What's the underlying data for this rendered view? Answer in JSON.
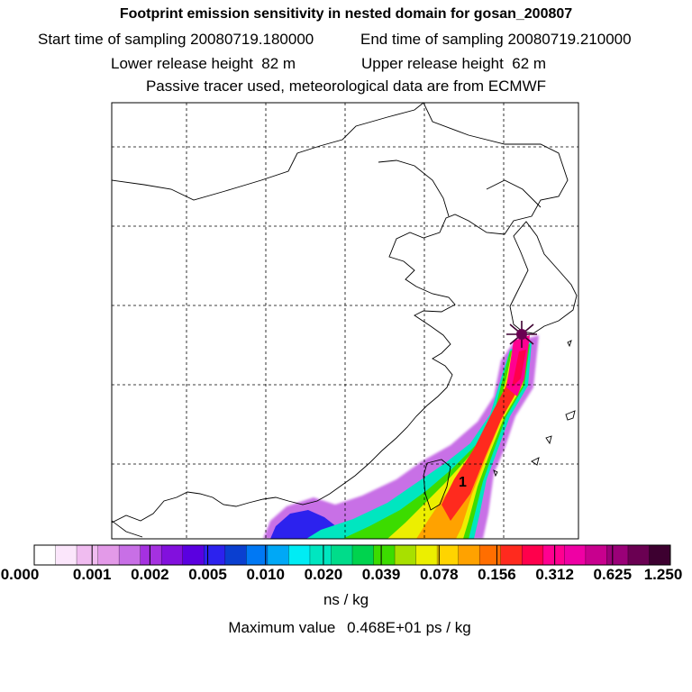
{
  "title": {
    "main": "Footprint emission sensitivity in nested domain for gosan_200807",
    "start_label": "Start time of sampling",
    "start_value": "20080719.180000",
    "end_label": "End time of sampling",
    "end_value": "20080719.210000",
    "lower_label": "Lower release height",
    "lower_value": "82 m",
    "upper_label": "Upper release height",
    "upper_value": "62 m",
    "note": "Passive tracer used, meteorological data are from ECMWF"
  },
  "map": {
    "receptor_marker": "star-marker",
    "max_label": "1"
  },
  "legend": {
    "colors": [
      "#ffffff",
      "#fbe6fb",
      "#f0bcf0",
      "#e39ae8",
      "#c86fe6",
      "#a531e0",
      "#8210dd",
      "#5a00e0",
      "#2c22ee",
      "#0a3fd0",
      "#0078f4",
      "#00a8f6",
      "#00ecf4",
      "#00e6c0",
      "#00dc8a",
      "#00d34e",
      "#3cdc00",
      "#a8e000",
      "#ecef00",
      "#ffd400",
      "#ffa200",
      "#ff6e00",
      "#ff2a1e",
      "#ff004c",
      "#ff0090",
      "#ef00a4",
      "#c8008e",
      "#9a0078",
      "#6a0052",
      "#3d0030"
    ],
    "ticks": [
      "0.000",
      "0.001",
      "0.002",
      "0.005",
      "0.010",
      "0.020",
      "0.039",
      "0.078",
      "0.156",
      "0.312",
      "0.625",
      "1.250"
    ],
    "unit": "ns / kg"
  },
  "footer": {
    "max_label": "Maximum value",
    "max_value": "0.468E+01 ps / kg"
  }
}
